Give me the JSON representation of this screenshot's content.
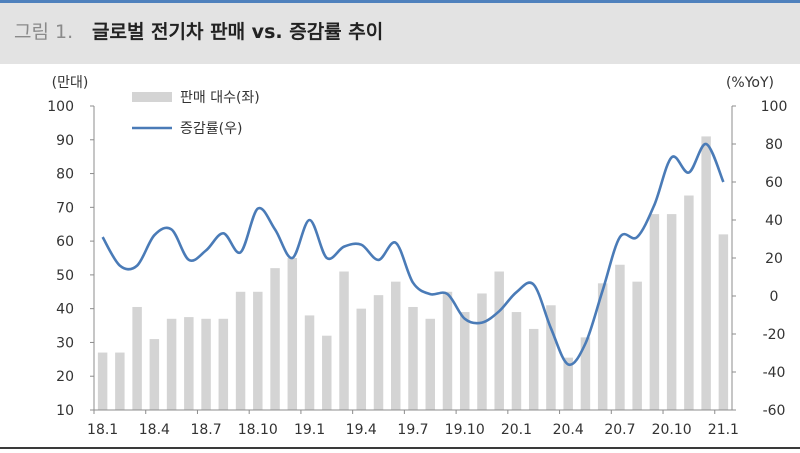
{
  "figure": {
    "number": "그림 1.",
    "title": "글로벌 전기차 판매 vs. 증감률 추이"
  },
  "colors": {
    "bar": "#d4d4d4",
    "line": "#4a7bb7",
    "axis_text": "#333333",
    "title_bg": "#e3e3e3",
    "title_accent": "#4f81bd"
  },
  "chart_data": {
    "type": "bar",
    "left_unit": "(만대)",
    "right_unit": "(%YoY)",
    "legend": [
      "판매 대수(좌)",
      "증감률(우)"
    ],
    "legend_position": "top-left",
    "grid": false,
    "x_tick_labels": [
      "18.1",
      "18.4",
      "18.7",
      "18.10",
      "19.1",
      "19.4",
      "19.7",
      "19.10",
      "20.1",
      "20.4",
      "20.7",
      "20.10",
      "21.1"
    ],
    "categories": [
      "18.1",
      "18.2",
      "18.3",
      "18.4",
      "18.5",
      "18.6",
      "18.7",
      "18.8",
      "18.9",
      "18.10",
      "18.11",
      "18.12",
      "19.1",
      "19.2",
      "19.3",
      "19.4",
      "19.5",
      "19.6",
      "19.7",
      "19.8",
      "19.9",
      "19.10",
      "19.11",
      "19.12",
      "20.1",
      "20.2",
      "20.3",
      "20.4",
      "20.5",
      "20.6",
      "20.7",
      "20.8",
      "20.9",
      "20.10",
      "20.11",
      "20.12",
      "21.1"
    ],
    "y_left": {
      "min": 10,
      "max": 100,
      "ticks": [
        10,
        20,
        30,
        40,
        50,
        60,
        70,
        80,
        90,
        100
      ]
    },
    "y_right": {
      "min": -60,
      "max": 100,
      "ticks": [
        -60,
        -40,
        -20,
        0,
        20,
        40,
        60,
        80,
        100
      ]
    },
    "series": [
      {
        "name": "판매 대수(좌)",
        "kind": "bar",
        "axis": "left",
        "values": [
          27,
          27,
          40.5,
          31,
          37,
          37.5,
          37,
          37,
          45,
          45,
          52,
          55,
          38,
          32,
          51,
          40,
          44,
          48,
          40.5,
          37,
          45,
          39,
          44.5,
          51,
          39,
          34,
          41,
          25.5,
          31.5,
          47.5,
          53,
          48,
          68,
          68,
          73.5,
          91,
          62
        ]
      },
      {
        "name": "증감률(우)",
        "kind": "line",
        "axis": "right",
        "values": [
          31,
          16,
          16,
          32,
          35,
          19,
          24,
          33,
          23,
          46,
          35,
          20,
          40,
          20,
          26,
          27,
          19,
          28,
          7,
          1,
          1,
          -12,
          -14,
          -8,
          2,
          6,
          -17,
          -36,
          -25,
          3,
          31,
          31,
          48,
          73,
          65,
          80,
          60
        ]
      }
    ]
  }
}
